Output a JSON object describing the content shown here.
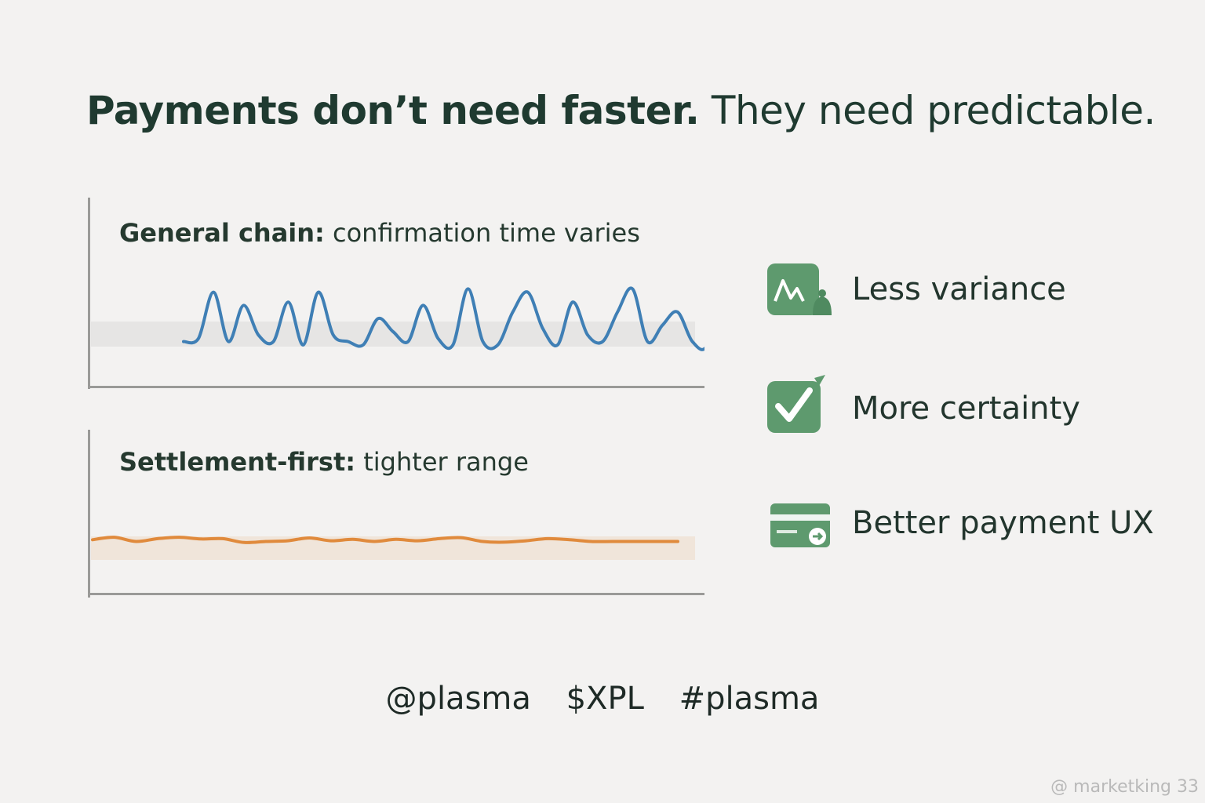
{
  "headline": {
    "bold": "Payments don’t need faster.",
    "light": " They need predictable."
  },
  "chart_data": [
    {
      "type": "line",
      "title": "General chain:",
      "subtitle": "confirmation time varies",
      "color": "#3f7fb5",
      "band_color": "#e6e5e4",
      "values": [
        0.1,
        0.15,
        0.85,
        0.1,
        0.65,
        0.2,
        0.1,
        0.7,
        0.05,
        0.85,
        0.2,
        0.1,
        0.05,
        0.45,
        0.25,
        0.1,
        0.65,
        0.15,
        0.05,
        0.9,
        0.1,
        0.05,
        0.55,
        0.85,
        0.3,
        0.05,
        0.7,
        0.2,
        0.1,
        0.55,
        0.9,
        0.1,
        0.35,
        0.55,
        0.1,
        0.05,
        1.0,
        0.4,
        0.3,
        0.15
      ]
    },
    {
      "type": "line",
      "title": "Settlement-first:",
      "subtitle": "tighter range",
      "color": "#e08a3c",
      "band_color": "#f0e5da",
      "values": [
        0.55,
        0.62,
        0.5,
        0.58,
        0.62,
        0.57,
        0.58,
        0.47,
        0.5,
        0.52,
        0.6,
        0.52,
        0.56,
        0.5,
        0.56,
        0.52,
        0.58,
        0.61,
        0.5,
        0.48,
        0.52,
        0.58,
        0.55,
        0.5,
        0.5,
        0.5,
        0.5,
        0.5
      ]
    }
  ],
  "benefits": [
    {
      "label": "Less variance",
      "icon": "wave-chart-icon",
      "color": "#5e9a6e"
    },
    {
      "label": "More certainty",
      "icon": "checkmark-icon",
      "color": "#5e9a6e"
    },
    {
      "label": "Better payment UX",
      "icon": "card-icon",
      "color": "#5e9a6e"
    }
  ],
  "tags": [
    "@plasma",
    "$XPL",
    "#plasma"
  ],
  "watermark": "@ marketking 33"
}
